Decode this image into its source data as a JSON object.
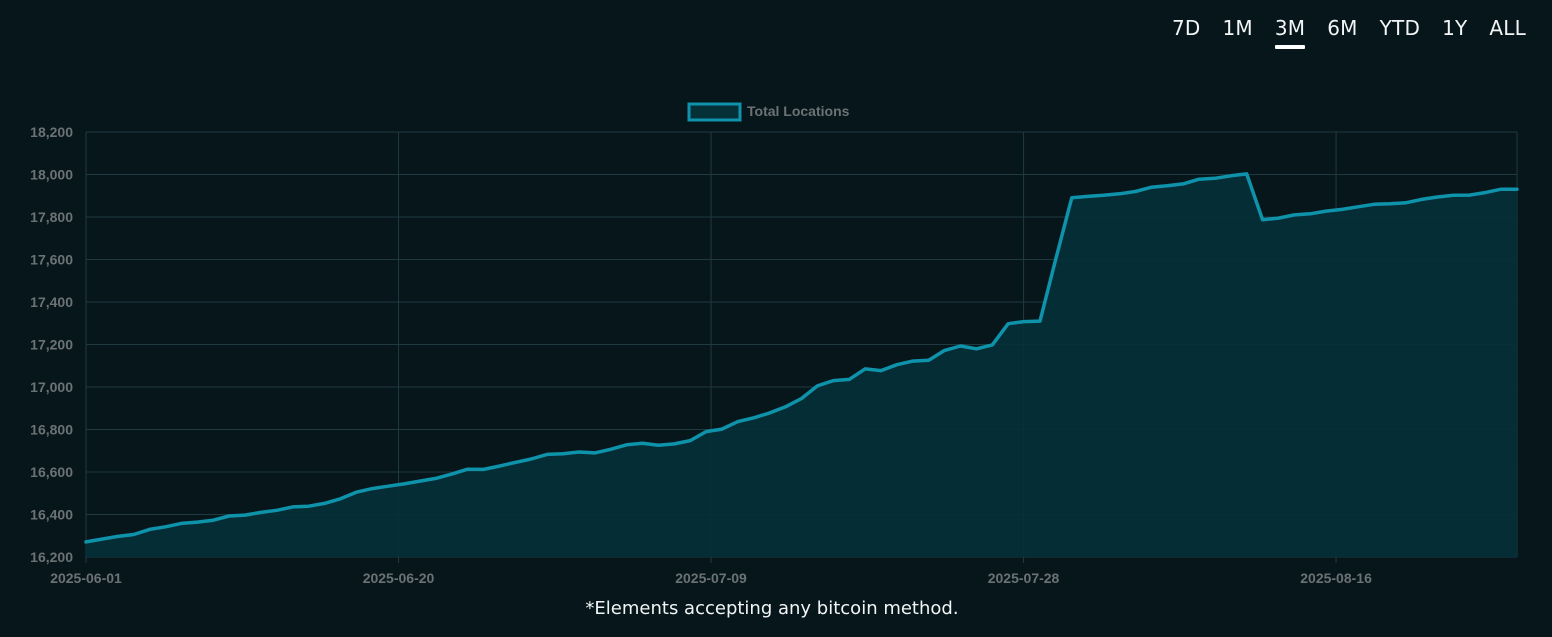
{
  "range_tabs": [
    {
      "label": "7D"
    },
    {
      "label": "1M"
    },
    {
      "label": "3M"
    },
    {
      "label": "6M"
    },
    {
      "label": "YTD"
    },
    {
      "label": "1Y"
    },
    {
      "label": "ALL"
    }
  ],
  "active_range": "3M",
  "footnote": "*Elements accepting any bitcoin method.",
  "colors": {
    "background": "#07161b",
    "line": "#0e93ab",
    "fill": "#063038",
    "grid": "#1f3b41",
    "tick_text": "#6b7275",
    "tab_text": "#f2f5f6"
  },
  "chart_data": {
    "type": "area",
    "grid": true,
    "legend_position": "top-center",
    "ylim": [
      16200,
      18200
    ],
    "yticks": [
      "16,200",
      "16,400",
      "16,600",
      "16,800",
      "17,000",
      "17,200",
      "17,400",
      "17,600",
      "17,800",
      "18,000",
      "18,200"
    ],
    "ytick_values": [
      16200,
      16400,
      16600,
      16800,
      17000,
      17200,
      17400,
      17600,
      17800,
      18000,
      18200
    ],
    "x_start": "2025-06-01",
    "x_end": "2025-08-27",
    "xticks": [
      "2025-06-01",
      "2025-06-20",
      "2025-07-09",
      "2025-07-28",
      "2025-08-16"
    ],
    "series": [
      {
        "name": "Total Locations",
        "points": [
          [
            "2025-06-01",
            16271
          ],
          [
            "2025-06-02",
            16284
          ],
          [
            "2025-06-03",
            16297
          ],
          [
            "2025-06-04",
            16306
          ],
          [
            "2025-06-05",
            16330
          ],
          [
            "2025-06-06",
            16342
          ],
          [
            "2025-06-07",
            16358
          ],
          [
            "2025-06-08",
            16364
          ],
          [
            "2025-06-09",
            16373
          ],
          [
            "2025-06-10",
            16393
          ],
          [
            "2025-06-11",
            16397
          ],
          [
            "2025-06-12",
            16410
          ],
          [
            "2025-06-13",
            16420
          ],
          [
            "2025-06-14",
            16436
          ],
          [
            "2025-06-15",
            16439
          ],
          [
            "2025-06-16",
            16452
          ],
          [
            "2025-06-17",
            16474
          ],
          [
            "2025-06-18",
            16505
          ],
          [
            "2025-06-19",
            16522
          ],
          [
            "2025-06-20",
            16533
          ],
          [
            "2025-06-21",
            16544
          ],
          [
            "2025-06-22",
            16557
          ],
          [
            "2025-06-23",
            16570
          ],
          [
            "2025-06-24",
            16590
          ],
          [
            "2025-06-25",
            16613
          ],
          [
            "2025-06-26",
            16612
          ],
          [
            "2025-06-27",
            16628
          ],
          [
            "2025-06-28",
            16645
          ],
          [
            "2025-06-29",
            16661
          ],
          [
            "2025-06-30",
            16683
          ],
          [
            "2025-07-01",
            16686
          ],
          [
            "2025-07-02",
            16694
          ],
          [
            "2025-07-03",
            16690
          ],
          [
            "2025-07-04",
            16707
          ],
          [
            "2025-07-05",
            16728
          ],
          [
            "2025-07-06",
            16735
          ],
          [
            "2025-07-07",
            16726
          ],
          [
            "2025-07-08",
            16732
          ],
          [
            "2025-07-09",
            16748
          ],
          [
            "2025-07-10",
            16790
          ],
          [
            "2025-07-11",
            16802
          ],
          [
            "2025-07-12",
            16837
          ],
          [
            "2025-07-13",
            16855
          ],
          [
            "2025-07-14",
            16878
          ],
          [
            "2025-07-15",
            16907
          ],
          [
            "2025-07-16",
            16946
          ],
          [
            "2025-07-17",
            17005
          ],
          [
            "2025-07-18",
            17030
          ],
          [
            "2025-07-19",
            17036
          ],
          [
            "2025-07-20",
            17085
          ],
          [
            "2025-07-21",
            17077
          ],
          [
            "2025-07-22",
            17105
          ],
          [
            "2025-07-23",
            17122
          ],
          [
            "2025-07-24",
            17126
          ],
          [
            "2025-07-25",
            17172
          ],
          [
            "2025-07-26",
            17193
          ],
          [
            "2025-07-27",
            17180
          ],
          [
            "2025-07-28",
            17198
          ],
          [
            "2025-07-29",
            17298
          ],
          [
            "2025-07-30",
            17308
          ],
          [
            "2025-07-31",
            17310
          ],
          [
            "2025-08-01",
            17604
          ],
          [
            "2025-08-02",
            17891
          ],
          [
            "2025-08-03",
            17897
          ],
          [
            "2025-08-04",
            17902
          ],
          [
            "2025-08-05",
            17909
          ],
          [
            "2025-08-06",
            17920
          ],
          [
            "2025-08-07",
            17940
          ],
          [
            "2025-08-08",
            17947
          ],
          [
            "2025-08-09",
            17956
          ],
          [
            "2025-08-10",
            17978
          ],
          [
            "2025-08-11",
            17982
          ],
          [
            "2025-08-12",
            17994
          ],
          [
            "2025-08-13",
            18003
          ],
          [
            "2025-08-14",
            17787
          ],
          [
            "2025-08-15",
            17795
          ],
          [
            "2025-08-16",
            17810
          ],
          [
            "2025-08-17",
            17815
          ],
          [
            "2025-08-18",
            17828
          ],
          [
            "2025-08-19",
            17836
          ],
          [
            "2025-08-20",
            17848
          ],
          [
            "2025-08-21",
            17860
          ],
          [
            "2025-08-22",
            17862
          ],
          [
            "2025-08-23",
            17867
          ],
          [
            "2025-08-24",
            17883
          ],
          [
            "2025-08-25",
            17894
          ],
          [
            "2025-08-26",
            17902
          ],
          [
            "2025-08-26",
            17903
          ],
          [
            "2025-08-27",
            17915
          ],
          [
            "2025-08-27",
            17931
          ],
          [
            "2025-08-27",
            17931
          ]
        ]
      }
    ]
  }
}
